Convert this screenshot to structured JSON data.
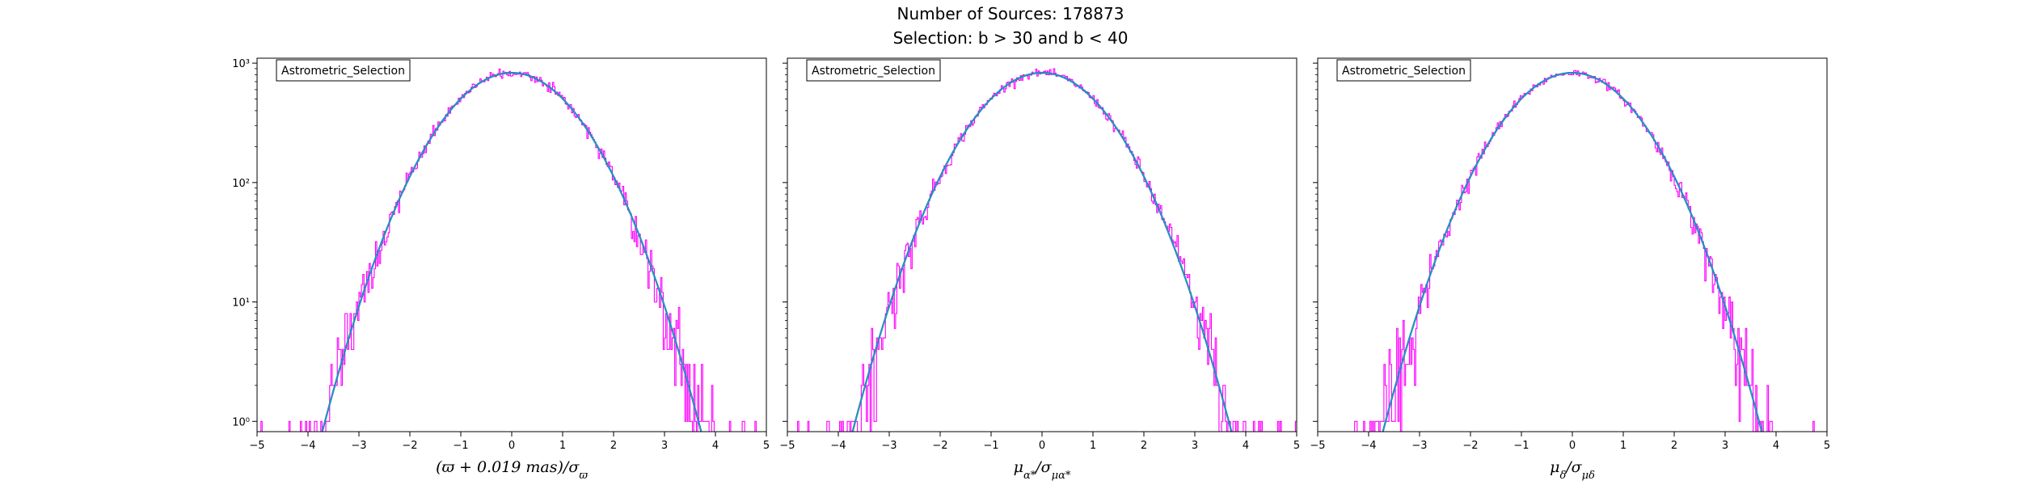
{
  "figure": {
    "title_line1": "Number of Sources: 178873",
    "title_line2": "Selection: b > 30 and b < 40"
  },
  "colors": {
    "histogram": "#ff00ff",
    "fit_curve": "#1f77b4",
    "fit_curve_overlay": "#17becf",
    "axes": "#000000"
  },
  "chart_data": [
    {
      "type": "line",
      "subtype": "histogram-with-gaussian-fit",
      "xlabel": "(ϖ + 0.019 mas)/σϖ",
      "xlabel_parts": {
        "main": "(ϖ + 0.019",
        "unit": "mas",
        "tail": ")/σ",
        "sub": "ϖ"
      },
      "legend": "Astrometric_Selection",
      "legend_loc": "upper-left",
      "xlim": [
        -5,
        5
      ],
      "ylim": [
        0.82,
        1100
      ],
      "yscale": "log",
      "x_ticks": [
        -5,
        -4,
        -3,
        -2,
        -1,
        0,
        1,
        2,
        3,
        4,
        5
      ],
      "y_ticks": [
        1,
        10,
        100,
        1000
      ],
      "y_tick_labels": [
        "10⁰",
        "10¹",
        "10²",
        "10³"
      ],
      "peak": 830,
      "sigma": 1.0,
      "fit_x_range": [
        -3.9,
        3.9
      ],
      "hist_x_range": [
        -5,
        5
      ],
      "grid": false
    },
    {
      "type": "line",
      "subtype": "histogram-with-gaussian-fit",
      "xlabel": "μα*/σμα*",
      "xlabel_parts": {
        "main": "μ",
        "sub1": "α*",
        "tail": "/σ",
        "sub2": "μα*"
      },
      "legend": "Astrometric_Selection",
      "legend_loc": "upper-left",
      "xlim": [
        -5,
        5
      ],
      "ylim": [
        0.82,
        1100
      ],
      "yscale": "log",
      "x_ticks": [
        -5,
        -4,
        -3,
        -2,
        -1,
        0,
        1,
        2,
        3,
        4,
        5
      ],
      "y_ticks": [
        1,
        10,
        100,
        1000
      ],
      "y_tick_labels": [
        "",
        "",
        "",
        ""
      ],
      "peak": 830,
      "sigma": 1.0,
      "fit_x_range": [
        -3.9,
        3.9
      ],
      "hist_x_range": [
        -5,
        5
      ],
      "grid": false
    },
    {
      "type": "line",
      "subtype": "histogram-with-gaussian-fit",
      "xlabel": "μδ/σμδ",
      "xlabel_parts": {
        "main": "μ",
        "sub1": "δ",
        "tail": "/σ",
        "sub2": "μδ"
      },
      "legend": "Astrometric_Selection",
      "legend_loc": "upper-left",
      "xlim": [
        -5,
        5
      ],
      "ylim": [
        0.82,
        1100
      ],
      "yscale": "log",
      "x_ticks": [
        -5,
        -4,
        -3,
        -2,
        -1,
        0,
        1,
        2,
        3,
        4,
        5
      ],
      "y_ticks": [
        1,
        10,
        100,
        1000
      ],
      "y_tick_labels": [
        "",
        "",
        "",
        ""
      ],
      "peak": 830,
      "sigma": 1.0,
      "fit_x_range": [
        -3.9,
        3.9
      ],
      "hist_x_range": [
        -5,
        5
      ],
      "grid": false
    }
  ]
}
